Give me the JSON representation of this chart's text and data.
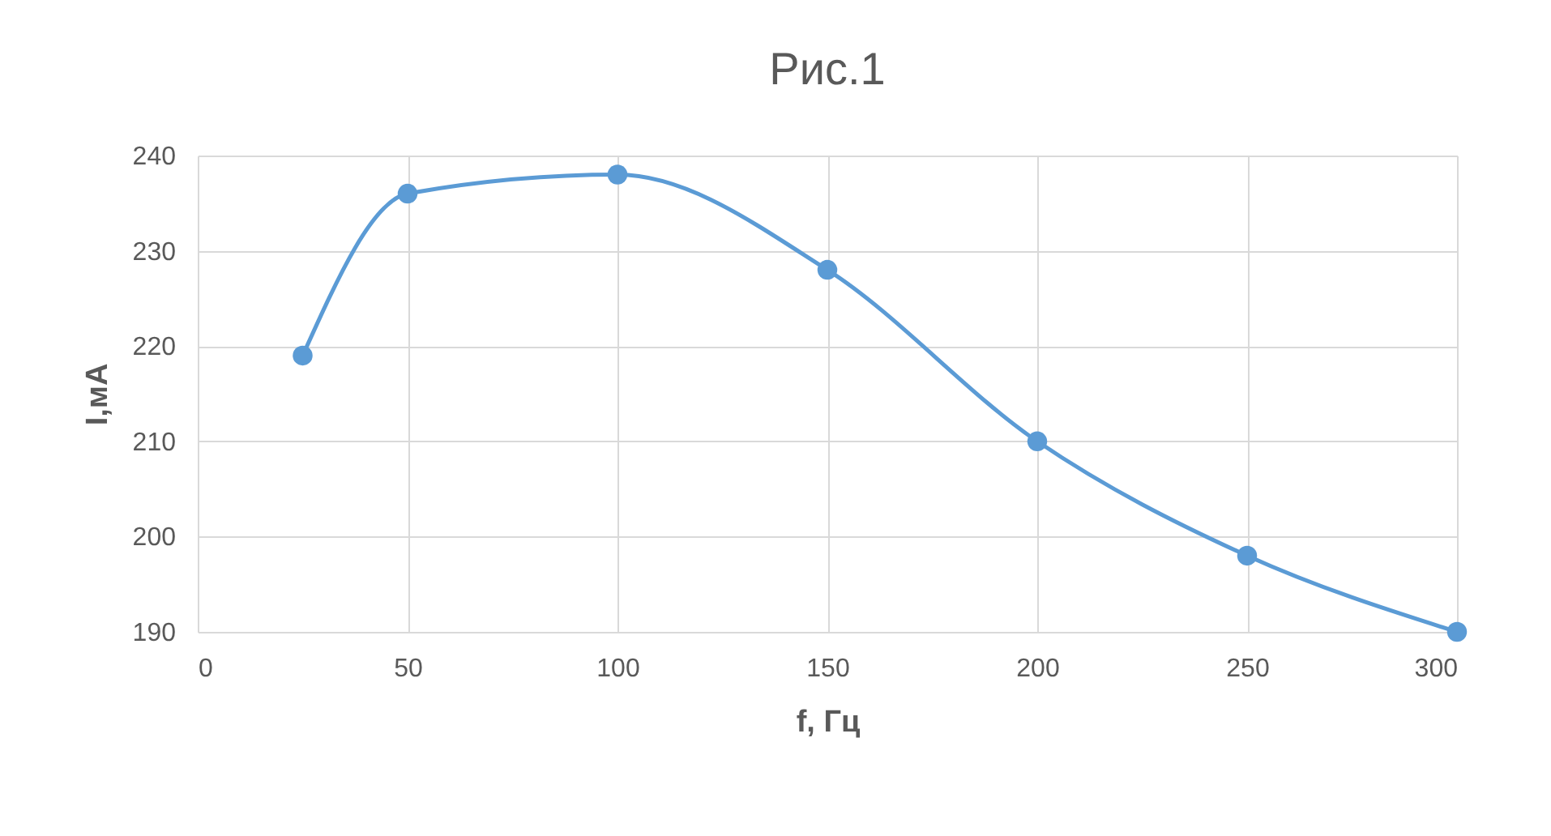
{
  "chart_data": {
    "type": "line",
    "title": "Рис.1",
    "xlabel": "f, Гц",
    "ylabel": "I,мА",
    "x": [
      25,
      50,
      100,
      150,
      200,
      250,
      300
    ],
    "series": [
      {
        "color": "#5b9bd5",
        "values": [
          219,
          236,
          238,
          228,
          210,
          198,
          190
        ]
      }
    ],
    "xlim": [
      0,
      300
    ],
    "xticks": [
      0,
      50,
      100,
      150,
      200,
      250,
      300
    ],
    "ylim": [
      190,
      240
    ],
    "yticks": [
      190,
      200,
      210,
      220,
      230,
      240
    ],
    "grid": true,
    "marker": "circle",
    "line_style": "solid"
  }
}
